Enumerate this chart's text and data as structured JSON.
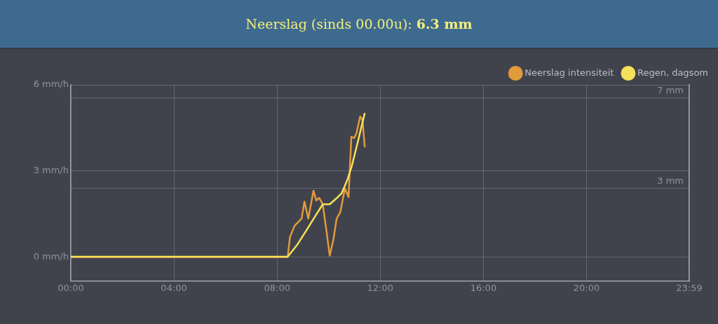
{
  "chart_data": {
    "type": "line",
    "title": "Neerslag (sinds 00.00u): 6.3 mm",
    "series": [
      {
        "name": "Neerslag intensiteit",
        "color": "#e29b3a",
        "x": [
          0,
          8.41,
          8.5,
          8.68,
          8.95,
          9.06,
          9.21,
          9.41,
          9.52,
          9.63,
          9.77,
          9.9,
          10.04,
          10.18,
          10.31,
          10.45,
          10.63,
          10.77,
          10.88,
          10.99,
          11.08,
          11.22,
          11.31,
          11.4
        ],
        "values": [
          0,
          0,
          0.7,
          1.09,
          1.34,
          1.93,
          1.34,
          2.31,
          1.97,
          2.06,
          1.84,
          1.0,
          0.05,
          0.59,
          1.34,
          1.56,
          2.39,
          2.09,
          4.19,
          4.15,
          4.32,
          4.9,
          4.77,
          3.82
        ]
      },
      {
        "name": "Regen, dagsom",
        "color": "#f6e15a",
        "axis": "y2",
        "x": [
          0,
          8.41,
          8.77,
          9.13,
          9.5,
          9.77,
          10.04,
          10.31,
          10.5,
          10.72,
          10.9,
          11.13,
          11.4
        ],
        "values": [
          0,
          0,
          0.51,
          1.15,
          1.83,
          2.31,
          2.31,
          2.58,
          2.79,
          3.37,
          4.01,
          5.06,
          6.33
        ]
      }
    ],
    "xlim": [
      0,
      23.983
    ],
    "xticks": [
      {
        "value": 0,
        "label": "00:00"
      },
      {
        "value": 4,
        "label": "04:00"
      },
      {
        "value": 8,
        "label": "08:00"
      },
      {
        "value": 12,
        "label": "12:00"
      },
      {
        "value": 16,
        "label": "16:00"
      },
      {
        "value": 20,
        "label": "20:00"
      },
      {
        "value": 23.983,
        "label": "23:59"
      }
    ],
    "ylim": [
      -0.83,
      6
    ],
    "yticks": [
      {
        "value": 0,
        "label": "0 mm/h"
      },
      {
        "value": 3,
        "label": "3 mm/h"
      },
      {
        "value": 6,
        "label": "6 mm/h"
      }
    ],
    "y2lim": [
      -1.06,
      7.57
    ],
    "y2ticks": [
      {
        "value": 3,
        "label": "3 mm"
      },
      {
        "value": 7,
        "label": "7 mm"
      }
    ],
    "grid": true,
    "legend": "top right",
    "marker": "none",
    "line_style": "solid"
  }
}
